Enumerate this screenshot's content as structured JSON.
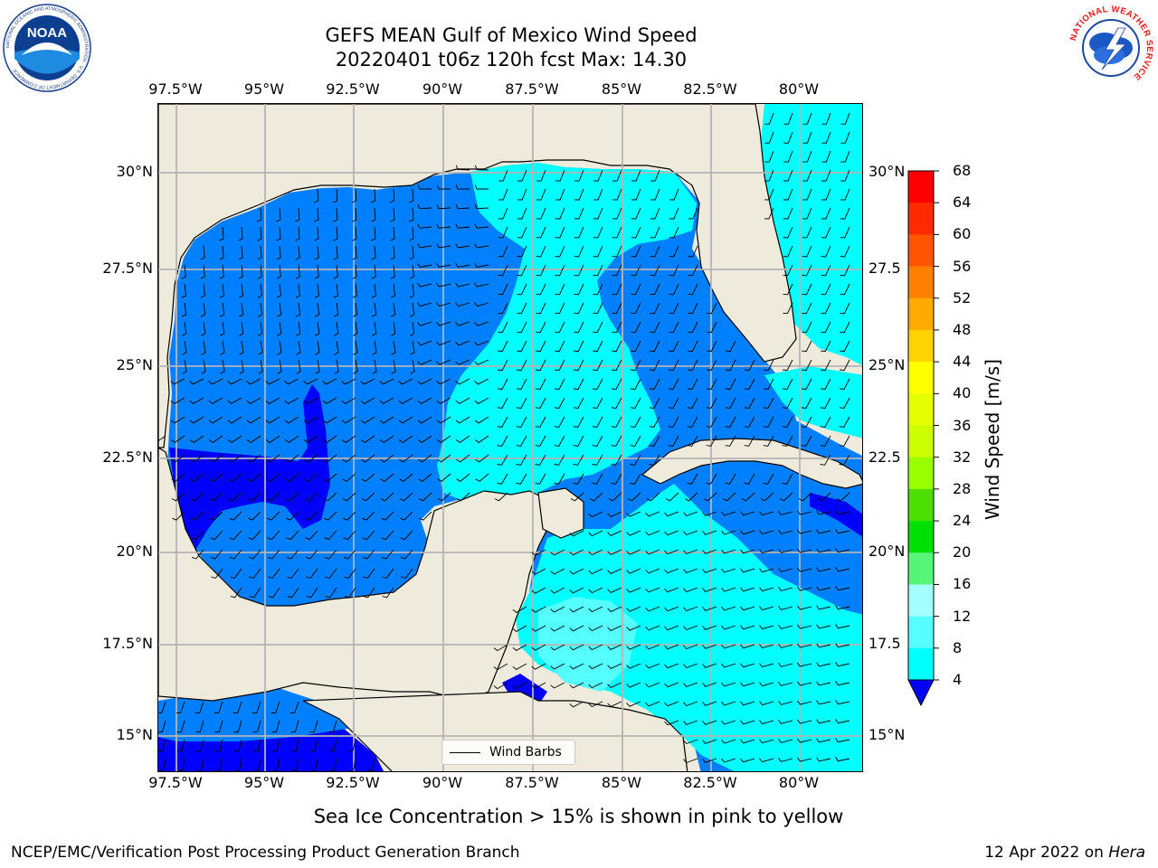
{
  "header": {
    "title_line1": "GEFS MEAN Gulf of Mexico Wind Speed",
    "title_line2": "20220401 t06z 120h fcst   Max: 14.30"
  },
  "logos": {
    "noaa_text": "NOAA",
    "noaa_ring": "NATIONAL OCEANIC AND ATMOSPHERIC ADMINISTRATION · U.S. DEPARTMENT OF COMMERCE",
    "nws_ring": "NATIONAL WEATHER SERVICE"
  },
  "map": {
    "lon_labels": [
      "97.5°W",
      "95°W",
      "92.5°W",
      "90°W",
      "87.5°W",
      "85°W",
      "82.5°W",
      "80°W"
    ],
    "lat_labels": [
      "30°N",
      "27.5°N",
      "25°N",
      "22.5°N",
      "20°N",
      "17.5°N",
      "15°N"
    ],
    "lat_labels_right": [
      "30°N",
      "27.5",
      "25°N",
      "22.5",
      "20°N",
      "17.5",
      "15°N"
    ],
    "legend_label": "Wind Barbs",
    "land_color": "#efebdc",
    "grid_color": "#b4b4b4"
  },
  "colorbar": {
    "label": "Wind Speed [m/s]",
    "ticks": [
      "68",
      "64",
      "60",
      "56",
      "52",
      "48",
      "44",
      "40",
      "36",
      "32",
      "28",
      "24",
      "20",
      "16",
      "12",
      "8",
      "4"
    ],
    "colors": [
      "#ff0000",
      "#ff2a00",
      "#ff5500",
      "#ff8000",
      "#ffaa00",
      "#ffd400",
      "#ffff00",
      "#e6ff00",
      "#ccff00",
      "#99ff00",
      "#4ddf00",
      "#00e000",
      "#55f57a",
      "#a6ffff",
      "#55ffff",
      "#00ffff",
      "#0080ff"
    ],
    "under_color": "#0000ff"
  },
  "subtitle": "Sea Ice Concentration > 15% is shown in pink to yellow",
  "footer": {
    "left": "NCEP/EMC/Verification Post Processing Product Generation Branch",
    "date": "12 Apr 2022 on ",
    "host": "Hera"
  }
}
